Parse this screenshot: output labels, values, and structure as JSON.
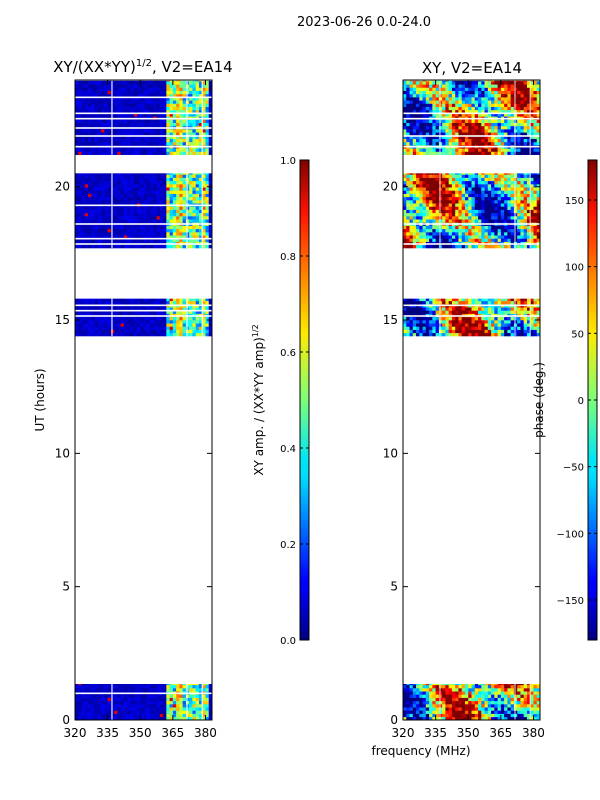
{
  "suptitle": "2023-06-26 0.0-24.0",
  "common_xlabel": "frequency (MHz)",
  "chart_data": [
    {
      "type": "heatmap",
      "title_main": "XY/(XX*YY)",
      "title_sup": "1/2",
      "title_tail": ", V2=EA14",
      "xlabel": "",
      "ylabel": "UT (hours)",
      "xlim": [
        320,
        383
      ],
      "ylim": [
        0,
        24
      ],
      "xticks": [
        320,
        335,
        350,
        365,
        380
      ],
      "yticks": [
        0,
        5,
        10,
        15,
        20
      ],
      "colormap": "jet",
      "colorbar": {
        "label_main": "XY amp. / (XX*YY amp)",
        "label_sup": "1/2",
        "range": [
          0.0,
          1.0
        ],
        "ticks": [
          "0.0",
          "0.2",
          "0.4",
          "0.6",
          "0.8",
          "1.0"
        ]
      },
      "data_hour_ranges": [
        [
          0.0,
          1.35
        ],
        [
          14.4,
          15.8
        ],
        [
          17.7,
          20.5
        ],
        [
          21.2,
          23.97
        ]
      ],
      "gap_hours": [
        1.0,
        15.15,
        15.35,
        15.55,
        17.85,
        18.05,
        18.6,
        19.3,
        21.5,
        21.9,
        22.2,
        22.55,
        22.75,
        23.35
      ]
    },
    {
      "type": "heatmap",
      "title_main": "XY, V2=EA14",
      "title_sup": "",
      "title_tail": "",
      "xlabel": "",
      "ylabel": "",
      "xlim": [
        320,
        383
      ],
      "ylim": [
        0,
        24
      ],
      "xticks": [
        320,
        335,
        350,
        365,
        380
      ],
      "yticks": [
        0,
        5,
        10,
        15,
        20
      ],
      "colormap": "jet",
      "colorbar": {
        "label_main": "phase (deg.)",
        "label_sup": "",
        "range": [
          -180,
          180
        ],
        "ticks": [
          "−150",
          "−100",
          "−50",
          "0",
          "50",
          "100",
          "150"
        ]
      },
      "data_hour_ranges": [
        [
          0.0,
          1.35
        ],
        [
          14.4,
          15.8
        ],
        [
          17.7,
          20.5
        ],
        [
          21.2,
          23.97
        ]
      ],
      "gap_hours": [
        15.15,
        15.55,
        17.85,
        18.6,
        21.5,
        21.9,
        22.55,
        22.75
      ]
    }
  ]
}
